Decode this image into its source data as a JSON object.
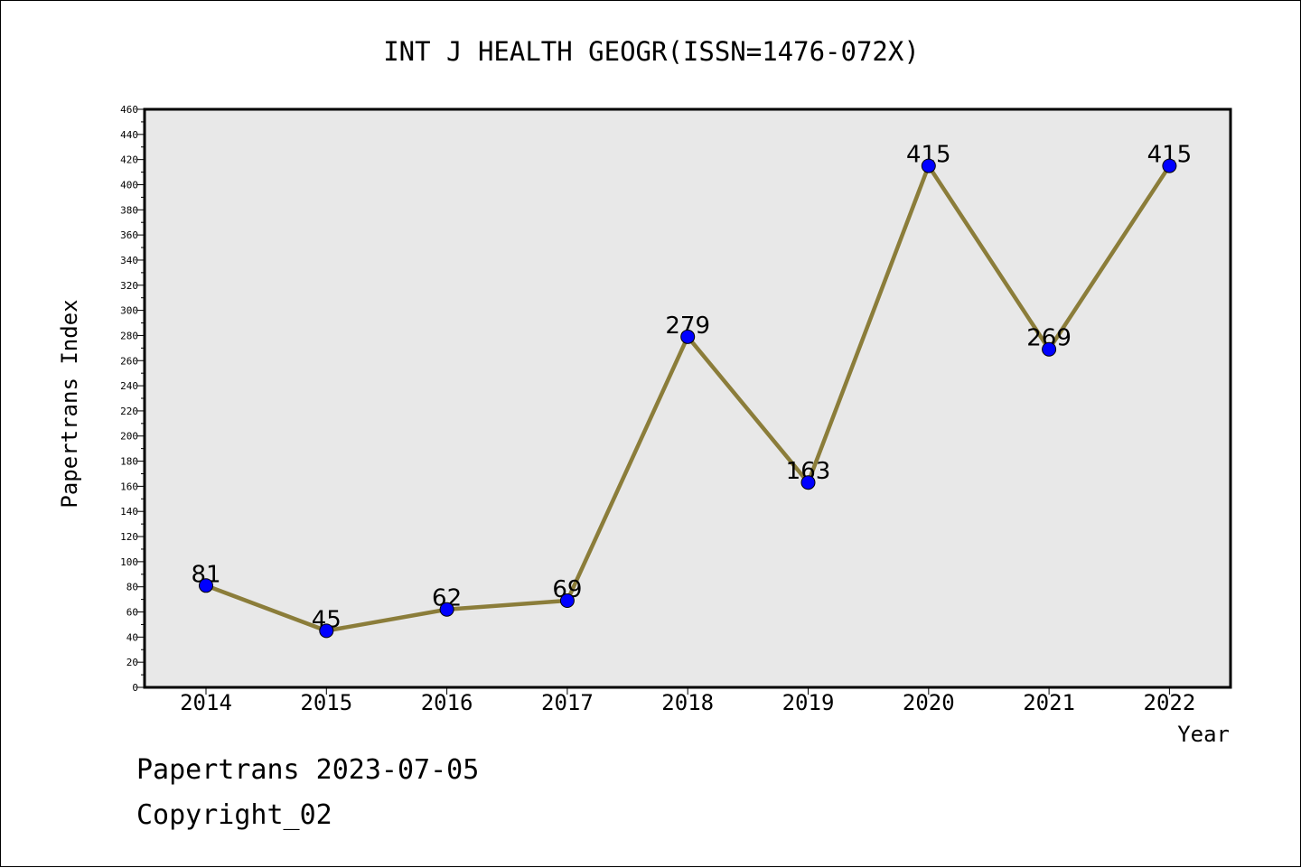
{
  "chart_data": {
    "type": "line",
    "title": "INT J HEALTH GEOGR(ISSN=1476-072X)",
    "xlabel": "Year",
    "ylabel": "Papertrans Index",
    "categories": [
      "2014",
      "2015",
      "2016",
      "2017",
      "2018",
      "2019",
      "2020",
      "2021",
      "2022"
    ],
    "series": [
      {
        "values": [
          81,
          45,
          62,
          69,
          279,
          163,
          415,
          269,
          415
        ]
      }
    ],
    "ylim": [
      0,
      460
    ],
    "ytick_step": 20,
    "grid": false,
    "colors": {
      "plot_background": "#e8e8e8",
      "line": "#8b7d3a",
      "marker": "#0000ff"
    }
  },
  "footer": {
    "date_line": "Papertrans 2023-07-05",
    "copyright_line": "Copyright_02"
  }
}
